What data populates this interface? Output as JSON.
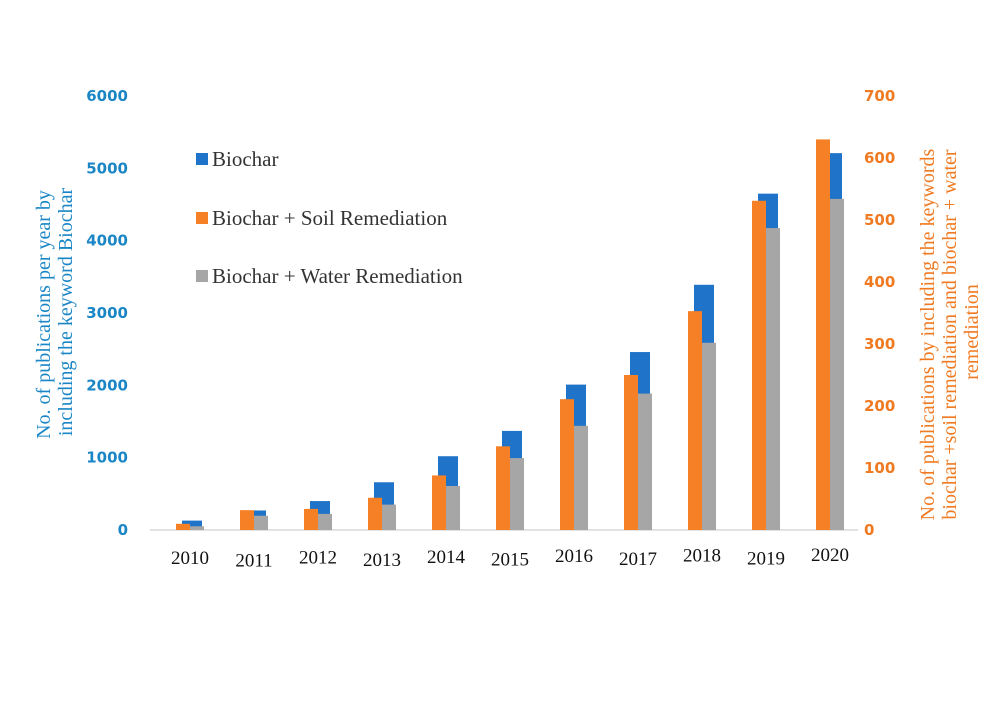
{
  "chart_data": {
    "type": "bar",
    "categories": [
      "2010",
      "2011",
      "2012",
      "2013",
      "2014",
      "2015",
      "2016",
      "2017",
      "2018",
      "2019",
      "2020"
    ],
    "series": [
      {
        "name": "Biochar",
        "axis": "left",
        "color": "#1f73c8",
        "values": [
          130,
          270,
          400,
          660,
          1020,
          1370,
          2010,
          2460,
          3390,
          4650,
          5210
        ]
      },
      {
        "name": "Biochar + Soil Remediation",
        "axis": "right",
        "color": "#f58025",
        "values": [
          10,
          32,
          34,
          52,
          88,
          135,
          211,
          250,
          353,
          531,
          630
        ]
      },
      {
        "name": "Biochar + Water Remediation",
        "axis": "right",
        "color": "#a6a6a6",
        "values": [
          6,
          23,
          26,
          41,
          71,
          116,
          168,
          220,
          302,
          487,
          534
        ]
      }
    ],
    "y_left": {
      "label_lines": [
        "No. of publications per year by",
        "including the keyword Biochar"
      ],
      "ylim": [
        0,
        6000
      ],
      "ticks": [
        "0",
        "1000",
        "2000",
        "3000",
        "4000",
        "5000",
        "6000"
      ],
      "color": "#1a86c6"
    },
    "y_right": {
      "label_lines": [
        "No. of publications by including the keywords",
        "biochar +soil remediation and biochar + water",
        "remediation"
      ],
      "ylim": [
        0,
        700
      ],
      "ticks": [
        "0",
        "100",
        "200",
        "300",
        "400",
        "500",
        "600",
        "700"
      ],
      "color": "#f07a22"
    },
    "grid": false,
    "legend_position": "top-left"
  }
}
